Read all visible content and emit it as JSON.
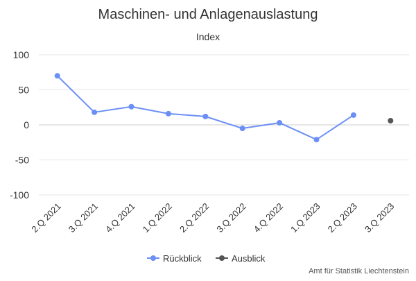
{
  "chart_data": {
    "type": "line",
    "title": "Maschinen- und Anlagenauslastung",
    "subtitle": "Index",
    "categories": [
      "2.Q 2021",
      "3.Q 2021",
      "4.Q 2021",
      "1.Q 2022",
      "2.Q 2022",
      "3.Q 2022",
      "4.Q 2022",
      "1.Q 2023",
      "2.Q 2023",
      "3.Q 2023"
    ],
    "ylim": [
      -100,
      100
    ],
    "yticks": [
      "100",
      "50",
      "0",
      "-50",
      "-100"
    ],
    "ytick_values": [
      100,
      50,
      0,
      -50,
      -100
    ],
    "grid": true,
    "legend_position": "bottom-center",
    "series": [
      {
        "name": "Rückblick",
        "color": "#6b8ff5",
        "values": [
          70,
          18,
          26,
          16,
          12,
          -5,
          3,
          -21,
          14,
          null
        ]
      },
      {
        "name": "Ausblick",
        "color": "#555555",
        "values": [
          null,
          null,
          null,
          null,
          null,
          null,
          null,
          null,
          null,
          6
        ]
      }
    ]
  },
  "credits": "Amt für Statistik Liechtenstein"
}
